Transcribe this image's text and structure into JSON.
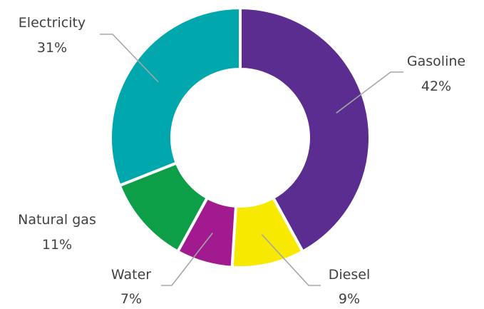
{
  "chart_data": {
    "type": "pie",
    "variant": "donut",
    "title": "",
    "categories": [
      "Gasoline",
      "Diesel",
      "Water",
      "Natural gas",
      "Electricity"
    ],
    "values": [
      42,
      9,
      7,
      11,
      31
    ],
    "value_labels": [
      "42%",
      "9%",
      "7%",
      "11%",
      "31%"
    ],
    "colors": [
      "#5b2d90",
      "#f7ea00",
      "#a21a8f",
      "#0d9e48",
      "#00a8ad"
    ],
    "start_angle": "12 o'clock",
    "direction": "clockwise",
    "legend": "none",
    "data_labels": "outside with leader lines"
  }
}
